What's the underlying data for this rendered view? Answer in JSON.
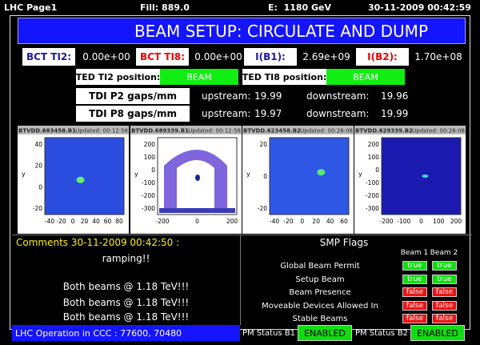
{
  "header": {
    "page": "LHC Page1",
    "fill": "Fill: 889.0",
    "energy": "E:  1180 GeV",
    "timestamp": "30-11-2009 00:42:59"
  },
  "title": "BEAM SETUP: CIRCULATE AND DUMP",
  "intensities": [
    {
      "label": "BCT TI2:",
      "value": "0.00e+00"
    },
    {
      "label": "BCT TI8:",
      "value": "0.00e+00"
    },
    {
      "label": "I(B1):",
      "value": "2.69e+09"
    },
    {
      "label": "I(B2):",
      "value": "1.70e+08"
    }
  ],
  "ted": [
    {
      "label": "TED TI2 position:",
      "state": "BEAM"
    },
    {
      "label": "TED TI8 position:",
      "state": "BEAM"
    }
  ],
  "tdi": [
    {
      "label": "TDI P2 gaps/mm",
      "upstream_label": "upstream:",
      "upstream": "19.99",
      "downstream_label": "downstream:",
      "downstream": "19.96"
    },
    {
      "label": "TDI P8 gaps/mm",
      "upstream_label": "upstream:",
      "upstream": "19.97",
      "downstream_label": "downstream:",
      "downstream": "19.99"
    }
  ],
  "screens": [
    {
      "name": "BTVDD.683458.B1",
      "updated": "Updated: 00:12:58",
      "ylabel": "y",
      "xticks": [
        "-40",
        "-20",
        "0",
        "20",
        "40",
        "60",
        "80"
      ],
      "yticks": [
        "40",
        "20",
        "0",
        "-20"
      ]
    },
    {
      "name": "BTVDD.689339.B1",
      "updated": "Updated: 00:12:58",
      "ylabel": "y",
      "xticks": [
        "-200",
        "0",
        "200"
      ],
      "yticks": [
        "200",
        "100",
        "0",
        "-100",
        "-200",
        "-300"
      ]
    },
    {
      "name": "BTVDD.623458.B2",
      "updated": "Updated: 00:26:08",
      "ylabel": "y",
      "xticks": [
        "-40",
        "-20",
        "0",
        "20",
        "40",
        "60"
      ],
      "yticks": [
        "20",
        "0",
        "-20"
      ]
    },
    {
      "name": "BTVDD.629339.B2",
      "updated": "Updated: 00:26:08",
      "ylabel": "y",
      "xticks": [
        "-200",
        "-100",
        "0",
        "100",
        "200"
      ],
      "yticks": [
        "200",
        "100",
        "0",
        "-100",
        "-200",
        "-300"
      ]
    }
  ],
  "comments": {
    "header": "Comments 30-11-2009 00:42:50 :",
    "lines": [
      "ramping!!",
      "Both beams @ 1.18 TeV!!!",
      "Both beams @ 1.18 TeV!!!",
      "Both beams @ 1.18 TeV!!!"
    ]
  },
  "smp": {
    "title": "SMP Flags",
    "columns": [
      "Beam 1",
      "Beam 2"
    ],
    "flags": [
      {
        "name": "Global Beam Permit",
        "values": [
          "true",
          "true"
        ]
      },
      {
        "name": "Setup Beam",
        "values": [
          "true",
          "true"
        ]
      },
      {
        "name": "Beam Presence",
        "values": [
          "false",
          "false"
        ]
      },
      {
        "name": "Moveable Devices Allowed In",
        "values": [
          "false",
          "false"
        ]
      },
      {
        "name": "Stable Beams",
        "values": [
          "false",
          "false"
        ]
      }
    ]
  },
  "footer": {
    "operation": "LHC Operation in CCC : 77600, 70480",
    "pm": [
      {
        "label": "PM Status B1",
        "state": "ENABLED"
      },
      {
        "label": "PM Status B2",
        "state": "ENABLED"
      }
    ]
  }
}
